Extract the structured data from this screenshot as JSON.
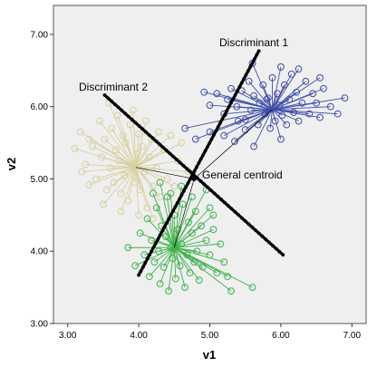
{
  "chart_data": {
    "type": "scatter",
    "xlabel": "v1",
    "ylabel": "v2",
    "xlim": [
      2.8,
      7.2
    ],
    "ylim": [
      3.0,
      7.4
    ],
    "xticks": [
      "3.00",
      "4.00",
      "5.00",
      "6.00",
      "7.00"
    ],
    "yticks": [
      "3.00",
      "4.00",
      "5.00",
      "6.00",
      "7.00"
    ],
    "grid": false,
    "plot_background": "#efefef",
    "annotations": [
      {
        "id": "discriminant-1",
        "text": "Discriminant 1",
        "x": 5.7,
        "y": 6.86
      },
      {
        "id": "discriminant-2",
        "text": "Discriminant 2",
        "x": 3.0,
        "y": 6.25
      },
      {
        "id": "general-centroid",
        "text": "General centroid",
        "x": 4.9,
        "y": 5.04
      }
    ],
    "discriminant_lines": [
      {
        "name": "Discriminant 1",
        "from": [
          4.0,
          3.67
        ],
        "to": [
          5.69,
          6.77
        ]
      },
      {
        "name": "Discriminant 2",
        "from": [
          3.52,
          6.16
        ],
        "to": [
          6.03,
          3.95
        ]
      }
    ],
    "general_centroid": {
      "x": 4.78,
      "y": 5.0
    },
    "series": [
      {
        "color": "#3e4ea8",
        "centroid": {
          "x": 5.88,
          "y": 5.96
        },
        "points": [
          [
            4.92,
            6.2
          ],
          [
            5.0,
            6.02
          ],
          [
            5.1,
            6.18
          ],
          [
            5.2,
            5.9
          ],
          [
            5.25,
            6.1
          ],
          [
            5.3,
            6.25
          ],
          [
            5.38,
            6.0
          ],
          [
            5.45,
            6.22
          ],
          [
            5.5,
            5.82
          ],
          [
            5.55,
            6.35
          ],
          [
            5.58,
            5.95
          ],
          [
            5.62,
            6.15
          ],
          [
            5.68,
            5.75
          ],
          [
            5.7,
            6.05
          ],
          [
            5.75,
            6.3
          ],
          [
            5.78,
            5.9
          ],
          [
            5.82,
            6.12
          ],
          [
            5.85,
            5.7
          ],
          [
            5.88,
            6.4
          ],
          [
            5.92,
            5.8
          ],
          [
            5.95,
            6.18
          ],
          [
            5.98,
            6.02
          ],
          [
            6.02,
            5.88
          ],
          [
            6.05,
            6.3
          ],
          [
            6.08,
            5.75
          ],
          [
            6.12,
            6.1
          ],
          [
            6.15,
            6.45
          ],
          [
            6.18,
            5.92
          ],
          [
            6.22,
            6.2
          ],
          [
            6.25,
            5.8
          ],
          [
            6.3,
            6.05
          ],
          [
            6.35,
            6.35
          ],
          [
            6.4,
            5.9
          ],
          [
            6.45,
            6.18
          ],
          [
            6.5,
            6.05
          ],
          [
            6.55,
            5.85
          ],
          [
            6.6,
            6.25
          ],
          [
            6.7,
            6.0
          ],
          [
            6.8,
            5.9
          ],
          [
            6.9,
            6.12
          ],
          [
            4.65,
            5.7
          ],
          [
            4.8,
            5.55
          ],
          [
            5.0,
            5.65
          ],
          [
            5.2,
            5.6
          ],
          [
            5.35,
            5.52
          ],
          [
            5.5,
            5.68
          ],
          [
            5.62,
            5.45
          ],
          [
            6.0,
            6.55
          ],
          [
            6.25,
            6.52
          ],
          [
            5.6,
            6.6
          ],
          [
            6.55,
            6.4
          ],
          [
            5.8,
            6.1
          ],
          [
            6.0,
            5.55
          ],
          [
            5.4,
            5.8
          ]
        ]
      },
      {
        "color": "#d8cfa0",
        "centroid": {
          "x": 3.96,
          "y": 5.16
        },
        "points": [
          [
            3.1,
            5.42
          ],
          [
            3.18,
            5.65
          ],
          [
            3.25,
            5.2
          ],
          [
            3.3,
            4.92
          ],
          [
            3.35,
            5.45
          ],
          [
            3.4,
            5.0
          ],
          [
            3.45,
            5.8
          ],
          [
            3.48,
            5.3
          ],
          [
            3.52,
            5.55
          ],
          [
            3.55,
            4.85
          ],
          [
            3.58,
            6.05
          ],
          [
            3.6,
            5.15
          ],
          [
            3.62,
            5.7
          ],
          [
            3.65,
            4.95
          ],
          [
            3.68,
            5.4
          ],
          [
            3.7,
            5.88
          ],
          [
            3.72,
            5.25
          ],
          [
            3.75,
            4.8
          ],
          [
            3.78,
            5.6
          ],
          [
            3.8,
            5.05
          ],
          [
            3.82,
            5.5
          ],
          [
            3.85,
            4.7
          ],
          [
            3.88,
            5.75
          ],
          [
            3.9,
            5.2
          ],
          [
            3.92,
            5.95
          ],
          [
            3.95,
            4.95
          ],
          [
            3.98,
            5.35
          ],
          [
            4.0,
            5.62
          ],
          [
            4.02,
            4.85
          ],
          [
            4.05,
            5.45
          ],
          [
            4.08,
            5.1
          ],
          [
            4.1,
            5.8
          ],
          [
            4.12,
            4.6
          ],
          [
            4.15,
            5.3
          ],
          [
            4.18,
            5.55
          ],
          [
            4.2,
            4.9
          ],
          [
            4.25,
            5.15
          ],
          [
            4.28,
            5.65
          ],
          [
            4.3,
            4.75
          ],
          [
            4.35,
            5.4
          ],
          [
            4.4,
            5.0
          ],
          [
            4.45,
            5.6
          ],
          [
            4.5,
            4.9
          ],
          [
            4.55,
            5.25
          ],
          [
            4.6,
            5.5
          ],
          [
            4.7,
            5.1
          ],
          [
            3.2,
            5.1
          ],
          [
            3.3,
            5.55
          ],
          [
            3.5,
            4.65
          ],
          [
            3.75,
            4.55
          ],
          [
            4.0,
            4.5
          ],
          [
            4.2,
            4.45
          ]
        ]
      },
      {
        "color": "#3db04b",
        "centroid": {
          "x": 4.5,
          "y": 4.05
        },
        "points": [
          [
            3.85,
            4.05
          ],
          [
            3.95,
            3.8
          ],
          [
            4.02,
            4.25
          ],
          [
            4.08,
            3.95
          ],
          [
            4.12,
            4.45
          ],
          [
            4.15,
            3.65
          ],
          [
            4.18,
            4.15
          ],
          [
            4.22,
            3.85
          ],
          [
            4.25,
            4.6
          ],
          [
            4.28,
            4.0
          ],
          [
            4.3,
            3.55
          ],
          [
            4.32,
            4.35
          ],
          [
            4.35,
            3.78
          ],
          [
            4.38,
            4.2
          ],
          [
            4.4,
            4.75
          ],
          [
            4.42,
            3.45
          ],
          [
            4.45,
            4.05
          ],
          [
            4.48,
            3.9
          ],
          [
            4.5,
            4.5
          ],
          [
            4.52,
            3.62
          ],
          [
            4.55,
            4.3
          ],
          [
            4.58,
            3.8
          ],
          [
            4.6,
            4.1
          ],
          [
            4.62,
            4.65
          ],
          [
            4.65,
            3.5
          ],
          [
            4.68,
            3.95
          ],
          [
            4.7,
            4.4
          ],
          [
            4.72,
            3.7
          ],
          [
            4.75,
            4.25
          ],
          [
            4.78,
            3.85
          ],
          [
            4.8,
            4.55
          ],
          [
            4.82,
            4.0
          ],
          [
            4.85,
            3.6
          ],
          [
            4.88,
            4.35
          ],
          [
            4.9,
            3.78
          ],
          [
            4.95,
            4.15
          ],
          [
            5.0,
            3.95
          ],
          [
            5.05,
            4.3
          ],
          [
            5.1,
            3.7
          ],
          [
            5.15,
            4.1
          ],
          [
            5.2,
            3.85
          ],
          [
            5.25,
            3.65
          ],
          [
            5.3,
            3.45
          ],
          [
            5.6,
            3.5
          ],
          [
            5.05,
            4.5
          ],
          [
            5.0,
            4.6
          ],
          [
            4.95,
            4.85
          ],
          [
            4.75,
            4.75
          ],
          [
            4.6,
            4.9
          ],
          [
            4.3,
            4.95
          ],
          [
            4.2,
            4.8
          ],
          [
            4.45,
            4.8
          ]
        ]
      }
    ]
  }
}
